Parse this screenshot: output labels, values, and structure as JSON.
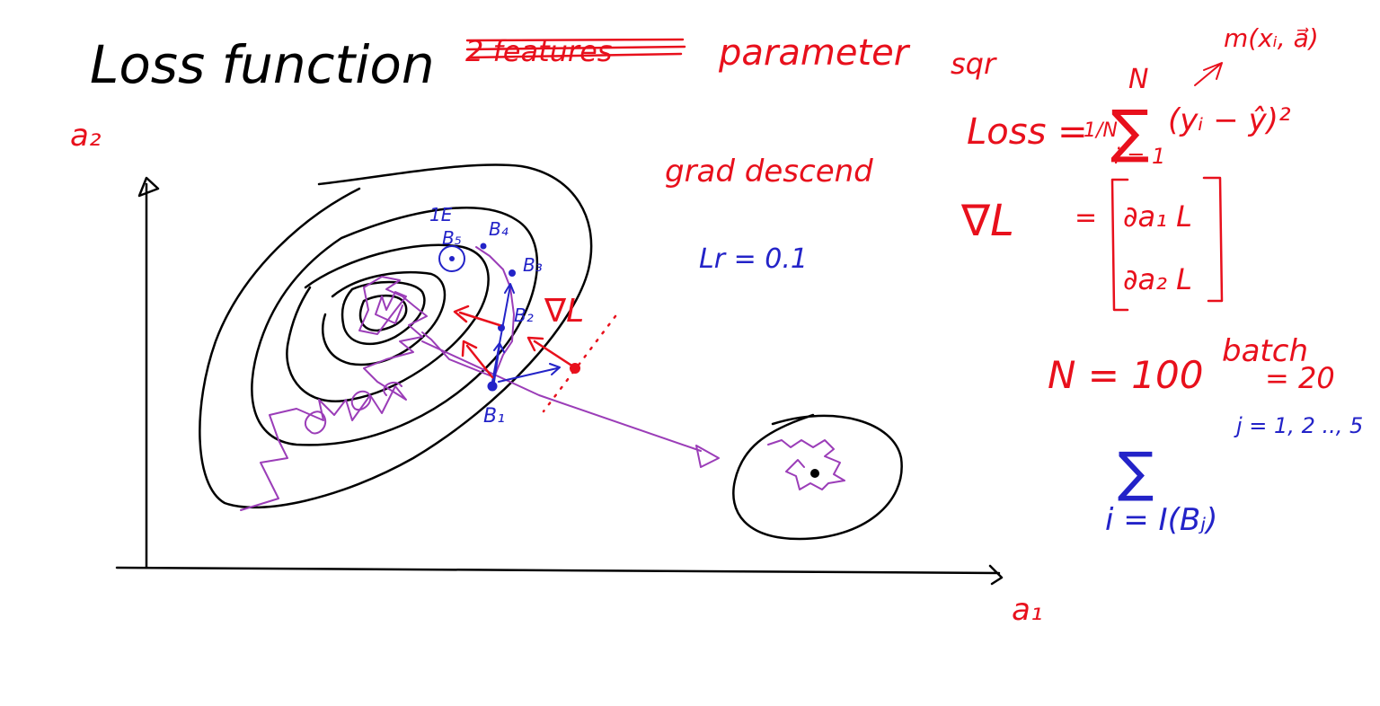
{
  "colors": {
    "black": "#000000",
    "red": "#e8101c",
    "blue": "#2323c8",
    "purple": "#9b3db8"
  },
  "title": "Loss function",
  "title_strikethrough": "2 features",
  "title_correction": "parameter",
  "axes": {
    "y_label": "a₂",
    "x_label": "a₁"
  },
  "annotations": {
    "grad_descend": "grad descend",
    "lr": "Lr = 0.1",
    "grad_L": "∇L",
    "one_e": "1E",
    "batch_points": [
      "B₁",
      "B₂",
      "B₃",
      "B₄",
      "B₅"
    ]
  },
  "formulas": {
    "sqr": "sqr",
    "model": "m(xᵢ, a⃗)",
    "loss_lhs": "Loss =",
    "loss_frac": "1/N",
    "sum_top": "N",
    "sum_bottom": "i = 1",
    "loss_term": "(yᵢ − ŷ)²",
    "grad_lhs": "∇L",
    "grad_matrix": [
      "∂a₁ L",
      "∂a₂ L"
    ],
    "n_value": "N = 100",
    "batch_label": "batch",
    "batch_value": "= 20",
    "j_range": "j = 1, 2 .., 5",
    "batch_sum_bottom": "i = I(Bⱼ)"
  }
}
